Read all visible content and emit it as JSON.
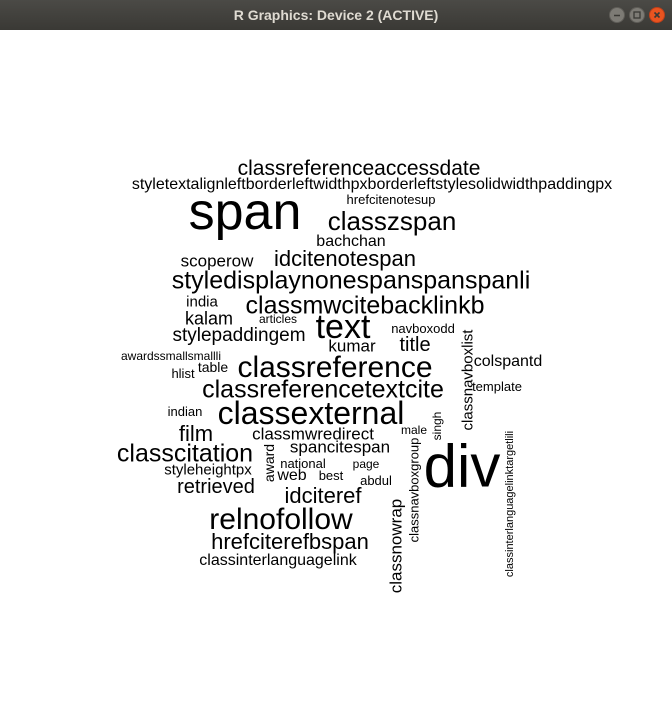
{
  "window": {
    "title": "R Graphics: Device 2 (ACTIVE)",
    "buttons": {
      "minimize": "minimize-icon",
      "maximize": "maximize-icon",
      "close": "close-icon"
    },
    "close_color": "#e95420"
  },
  "wordcloud": {
    "words": [
      "classreferenceaccessdate",
      "styletextalignleftborderleftwidthpxborderleftstylesolidwidthpaddingpx",
      "hrefcitenotesup",
      "span",
      "classzspan",
      "bachchan",
      "scoperow",
      "idcitenotespan",
      "styledisplaynonespanspanspanli",
      "india",
      "classmwcitebacklinkb",
      "kalam",
      "articles",
      "text",
      "stylepaddingem",
      "navboxodd",
      "kumar",
      "title",
      "awardssmallsmallli",
      "classreference",
      "classnavboxlist",
      "colspantd",
      "table",
      "hlist",
      "classreferencetextcite",
      "template",
      "indian",
      "classexternal",
      "singh",
      "film",
      "classmwredirect",
      "male",
      "classinterlanguagelinktargetlili",
      "classcitation",
      "spancitespan",
      "classnavboxgroup",
      "div",
      "styleheightpx",
      "national",
      "page",
      "award",
      "web",
      "best",
      "abdul",
      "retrieved",
      "idciteref",
      "relnofollow",
      "classnowrap",
      "hrefciterefbspan",
      "classinterlanguagelink"
    ]
  }
}
